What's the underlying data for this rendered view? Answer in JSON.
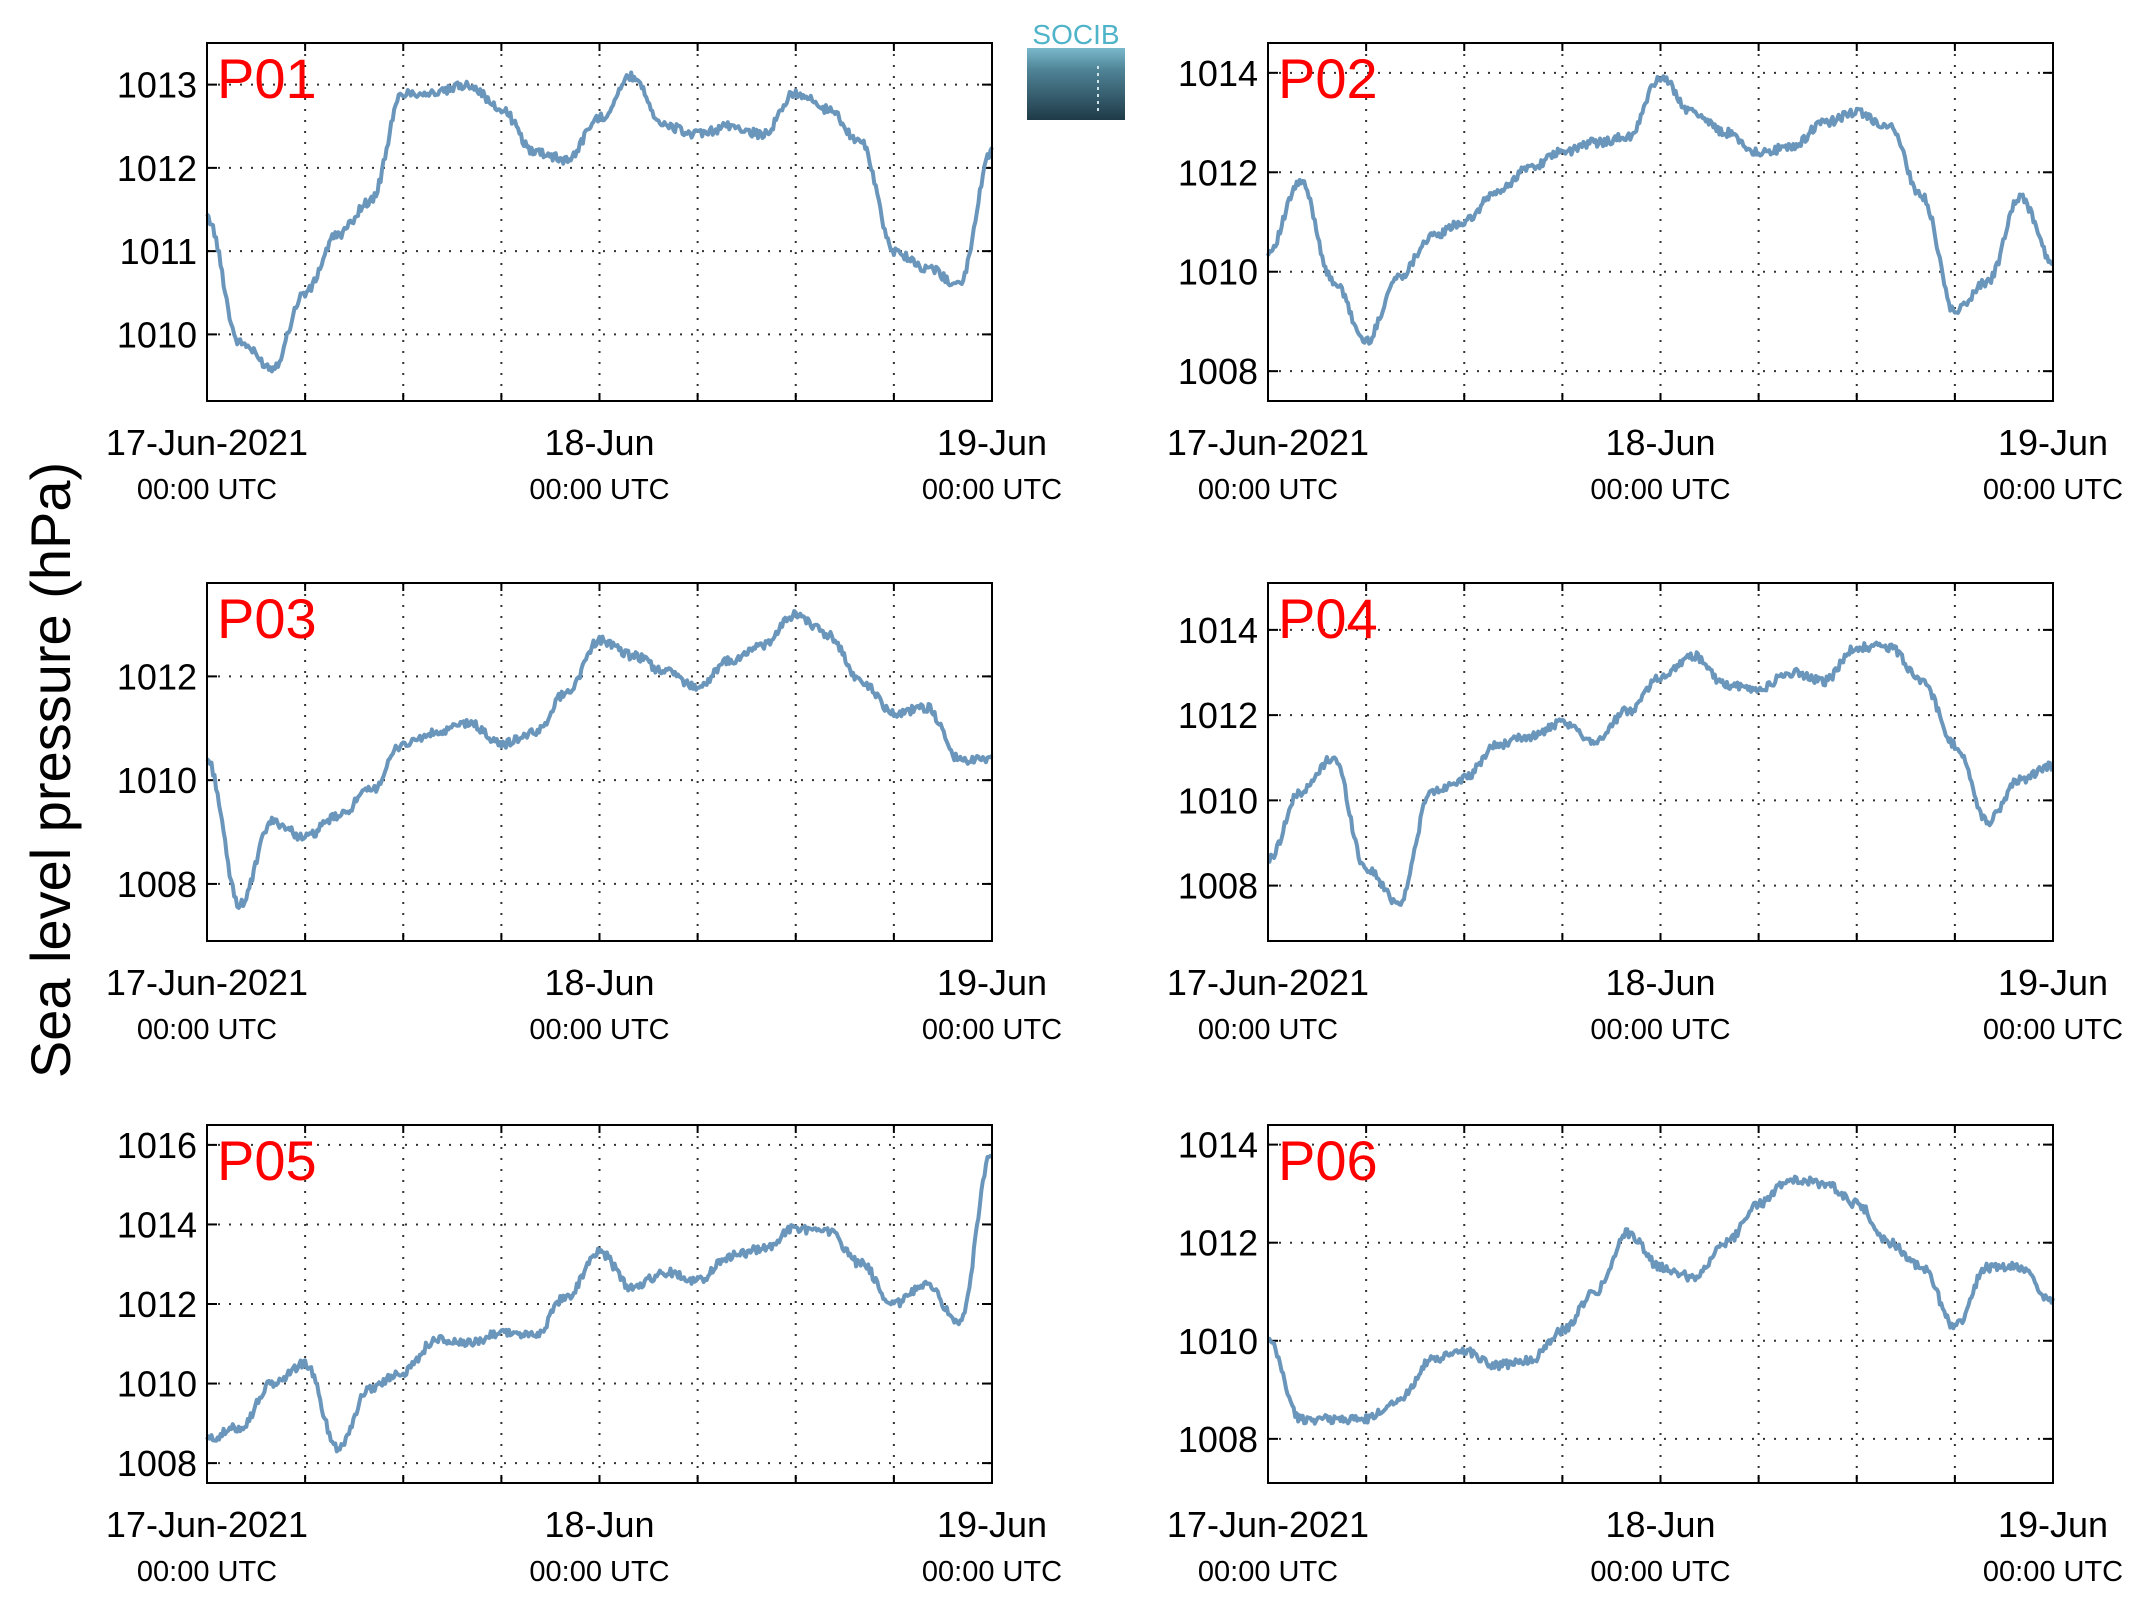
{
  "figure": {
    "ylabel": "Sea level pressure (hPa)",
    "logo_text": "SOCIB",
    "x_axis": {
      "range": [
        "2021-06-17T00:00Z",
        "2021-06-19T00:00Z"
      ],
      "ticks": [
        {
          "date": "2021-06-17T00:00Z",
          "label": "17-Jun-2021",
          "sublabel": "00:00 UTC"
        },
        {
          "date": "2021-06-18T00:00Z",
          "label": "18-Jun",
          "sublabel": "00:00 UTC"
        },
        {
          "date": "2021-06-19T00:00Z",
          "label": "19-Jun",
          "sublabel": "00:00 UTC"
        }
      ]
    },
    "line_color": "#6a96bb",
    "label_color": "#ff0000",
    "grid": true
  },
  "chart_data": [
    {
      "type": "line",
      "name": "P01",
      "ylim": [
        1009.2,
        1013.5
      ],
      "yticks": [
        1010,
        1011,
        1012,
        1013
      ],
      "x": [
        "2021-06-17T00:00Z",
        "2021-06-17T02:00Z",
        "2021-06-17T04:00Z",
        "2021-06-17T06:00Z",
        "2021-06-17T08:00Z",
        "2021-06-17T10:00Z",
        "2021-06-17T12:00Z",
        "2021-06-17T14:00Z",
        "2021-06-17T16:00Z",
        "2021-06-17T18:00Z",
        "2021-06-17T20:00Z",
        "2021-06-17T22:00Z",
        "2021-06-18T00:00Z",
        "2021-06-18T02:00Z",
        "2021-06-18T04:00Z",
        "2021-06-18T06:00Z",
        "2021-06-18T08:00Z",
        "2021-06-18T10:00Z",
        "2021-06-18T12:00Z",
        "2021-06-18T14:00Z",
        "2021-06-18T16:00Z",
        "2021-06-18T18:00Z",
        "2021-06-18T20:00Z",
        "2021-06-18T22:00Z",
        "2021-06-19T00:00Z"
      ],
      "y": [
        1011.4,
        1009.9,
        1009.6,
        1010.5,
        1011.2,
        1011.6,
        1012.9,
        1012.9,
        1013.0,
        1012.7,
        1012.2,
        1012.1,
        1012.6,
        1013.1,
        1012.5,
        1012.4,
        1012.5,
        1012.4,
        1012.9,
        1012.7,
        1012.3,
        1011.0,
        1010.8,
        1010.6,
        1012.2
      ]
    },
    {
      "type": "line",
      "name": "P02",
      "ylim": [
        1007.4,
        1014.6
      ],
      "yticks": [
        1008,
        1010,
        1012,
        1014
      ],
      "x": [
        "2021-06-17T00:00Z",
        "2021-06-17T02:00Z",
        "2021-06-17T04:00Z",
        "2021-06-17T06:00Z",
        "2021-06-17T08:00Z",
        "2021-06-17T10:00Z",
        "2021-06-17T12:00Z",
        "2021-06-17T14:00Z",
        "2021-06-17T16:00Z",
        "2021-06-17T18:00Z",
        "2021-06-17T20:00Z",
        "2021-06-17T22:00Z",
        "2021-06-18T00:00Z",
        "2021-06-18T02:00Z",
        "2021-06-18T04:00Z",
        "2021-06-18T06:00Z",
        "2021-06-18T08:00Z",
        "2021-06-18T10:00Z",
        "2021-06-18T12:00Z",
        "2021-06-18T14:00Z",
        "2021-06-18T16:00Z",
        "2021-06-18T18:00Z",
        "2021-06-18T20:00Z",
        "2021-06-18T22:00Z",
        "2021-06-19T00:00Z"
      ],
      "y": [
        1010.4,
        1011.8,
        1009.8,
        1008.6,
        1009.9,
        1010.7,
        1011.0,
        1011.6,
        1012.1,
        1012.4,
        1012.6,
        1012.7,
        1013.9,
        1013.2,
        1012.8,
        1012.4,
        1012.5,
        1013.0,
        1013.2,
        1012.9,
        1011.5,
        1009.2,
        1009.8,
        1011.5,
        1010.2
      ]
    },
    {
      "type": "line",
      "name": "P03",
      "ylim": [
        1006.9,
        1013.8
      ],
      "yticks": [
        1008,
        1010,
        1012
      ],
      "x": [
        "2021-06-17T00:00Z",
        "2021-06-17T02:00Z",
        "2021-06-17T04:00Z",
        "2021-06-17T06:00Z",
        "2021-06-17T08:00Z",
        "2021-06-17T10:00Z",
        "2021-06-17T12:00Z",
        "2021-06-17T14:00Z",
        "2021-06-17T16:00Z",
        "2021-06-17T18:00Z",
        "2021-06-17T20:00Z",
        "2021-06-17T22:00Z",
        "2021-06-18T00:00Z",
        "2021-06-18T02:00Z",
        "2021-06-18T04:00Z",
        "2021-06-18T06:00Z",
        "2021-06-18T08:00Z",
        "2021-06-18T10:00Z",
        "2021-06-18T12:00Z",
        "2021-06-18T14:00Z",
        "2021-06-18T16:00Z",
        "2021-06-18T18:00Z",
        "2021-06-18T20:00Z",
        "2021-06-18T22:00Z",
        "2021-06-19T00:00Z"
      ],
      "y": [
        1010.4,
        1007.6,
        1009.2,
        1008.9,
        1009.3,
        1009.8,
        1010.7,
        1010.9,
        1011.1,
        1010.7,
        1010.9,
        1011.7,
        1012.7,
        1012.4,
        1012.1,
        1011.8,
        1012.3,
        1012.6,
        1013.2,
        1012.8,
        1011.9,
        1011.3,
        1011.4,
        1010.4,
        1010.4
      ]
    },
    {
      "type": "line",
      "name": "P04",
      "ylim": [
        1006.7,
        1015.1
      ],
      "yticks": [
        1008,
        1010,
        1012,
        1014
      ],
      "x": [
        "2021-06-17T00:00Z",
        "2021-06-17T02:00Z",
        "2021-06-17T04:00Z",
        "2021-06-17T06:00Z",
        "2021-06-17T08:00Z",
        "2021-06-17T10:00Z",
        "2021-06-17T12:00Z",
        "2021-06-17T14:00Z",
        "2021-06-17T16:00Z",
        "2021-06-17T18:00Z",
        "2021-06-17T20:00Z",
        "2021-06-17T22:00Z",
        "2021-06-18T00:00Z",
        "2021-06-18T02:00Z",
        "2021-06-18T04:00Z",
        "2021-06-18T06:00Z",
        "2021-06-18T08:00Z",
        "2021-06-18T10:00Z",
        "2021-06-18T12:00Z",
        "2021-06-18T14:00Z",
        "2021-06-18T16:00Z",
        "2021-06-18T18:00Z",
        "2021-06-18T20:00Z",
        "2021-06-18T22:00Z",
        "2021-06-19T00:00Z"
      ],
      "y": [
        1008.6,
        1010.2,
        1011.0,
        1008.4,
        1007.6,
        1010.2,
        1010.5,
        1011.3,
        1011.5,
        1011.8,
        1011.4,
        1012.1,
        1012.9,
        1013.4,
        1012.7,
        1012.6,
        1013.0,
        1012.8,
        1013.6,
        1013.6,
        1012.8,
        1011.3,
        1009.5,
        1010.5,
        1010.8
      ]
    },
    {
      "type": "line",
      "name": "P05",
      "ylim": [
        1007.5,
        1016.5
      ],
      "yticks": [
        1008,
        1010,
        1012,
        1014,
        1016
      ],
      "x": [
        "2021-06-17T00:00Z",
        "2021-06-17T02:00Z",
        "2021-06-17T04:00Z",
        "2021-06-17T06:00Z",
        "2021-06-17T08:00Z",
        "2021-06-17T10:00Z",
        "2021-06-17T12:00Z",
        "2021-06-17T14:00Z",
        "2021-06-17T16:00Z",
        "2021-06-17T18:00Z",
        "2021-06-17T20:00Z",
        "2021-06-17T22:00Z",
        "2021-06-18T00:00Z",
        "2021-06-18T02:00Z",
        "2021-06-18T04:00Z",
        "2021-06-18T06:00Z",
        "2021-06-18T08:00Z",
        "2021-06-18T10:00Z",
        "2021-06-18T12:00Z",
        "2021-06-18T14:00Z",
        "2021-06-18T16:00Z",
        "2021-06-18T18:00Z",
        "2021-06-18T20:00Z",
        "2021-06-18T22:00Z",
        "2021-06-19T00:00Z"
      ],
      "y": [
        1008.6,
        1008.9,
        1010.0,
        1010.5,
        1008.4,
        1009.9,
        1010.3,
        1011.1,
        1011.0,
        1011.3,
        1011.2,
        1012.2,
        1013.3,
        1012.4,
        1012.8,
        1012.6,
        1013.2,
        1013.4,
        1013.9,
        1013.8,
        1013.0,
        1012.0,
        1012.5,
        1011.5,
        1015.8
      ]
    },
    {
      "type": "line",
      "name": "P06",
      "ylim": [
        1007.1,
        1014.4
      ],
      "yticks": [
        1008,
        1010,
        1012,
        1014
      ],
      "x": [
        "2021-06-17T00:00Z",
        "2021-06-17T02:00Z",
        "2021-06-17T04:00Z",
        "2021-06-17T06:00Z",
        "2021-06-17T08:00Z",
        "2021-06-17T10:00Z",
        "2021-06-17T12:00Z",
        "2021-06-17T14:00Z",
        "2021-06-17T16:00Z",
        "2021-06-17T18:00Z",
        "2021-06-17T20:00Z",
        "2021-06-17T22:00Z",
        "2021-06-18T00:00Z",
        "2021-06-18T02:00Z",
        "2021-06-18T04:00Z",
        "2021-06-18T06:00Z",
        "2021-06-18T08:00Z",
        "2021-06-18T10:00Z",
        "2021-06-18T12:00Z",
        "2021-06-18T14:00Z",
        "2021-06-18T16:00Z",
        "2021-06-18T18:00Z",
        "2021-06-18T20:00Z",
        "2021-06-18T22:00Z",
        "2021-06-19T00:00Z"
      ],
      "y": [
        1010.0,
        1008.4,
        1008.4,
        1008.4,
        1008.8,
        1009.6,
        1009.8,
        1009.5,
        1009.6,
        1010.2,
        1011.0,
        1012.2,
        1011.5,
        1011.3,
        1012.0,
        1012.8,
        1013.3,
        1013.2,
        1012.8,
        1012.0,
        1011.5,
        1010.3,
        1011.5,
        1011.5,
        1010.8
      ]
    }
  ]
}
